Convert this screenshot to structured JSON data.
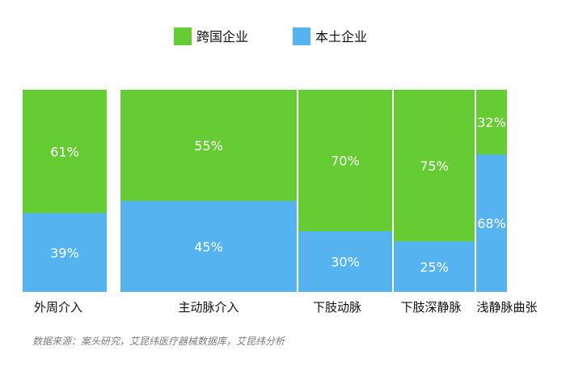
{
  "chart_data": {
    "type": "bar",
    "subtype": "marimekko-100%-stacked",
    "legend_position": "top-center",
    "series": [
      {
        "name": "跨国企业",
        "color": "#66cc33",
        "values": [
          61,
          55,
          70,
          75,
          32
        ]
      },
      {
        "name": "本土企业",
        "color": "#55b4f0",
        "values": [
          39,
          45,
          30,
          25,
          68
        ]
      }
    ],
    "categories": [
      "外周介入",
      "主动脉介入",
      "下肢动脉",
      "下肢深静脉",
      "浅静脉曲张"
    ],
    "category_widths": [
      104,
      218,
      116,
      100,
      38
    ],
    "value_labels": [
      [
        "61%",
        "55%",
        "70%",
        "75%",
        "32%"
      ],
      [
        "39%",
        "45%",
        "30%",
        "25%",
        "68%"
      ]
    ],
    "ylim": [
      0,
      100
    ],
    "grid": false
  },
  "source": "数据来源：案头研究，艾昆纬医疗器械数据库，艾昆纬分析"
}
